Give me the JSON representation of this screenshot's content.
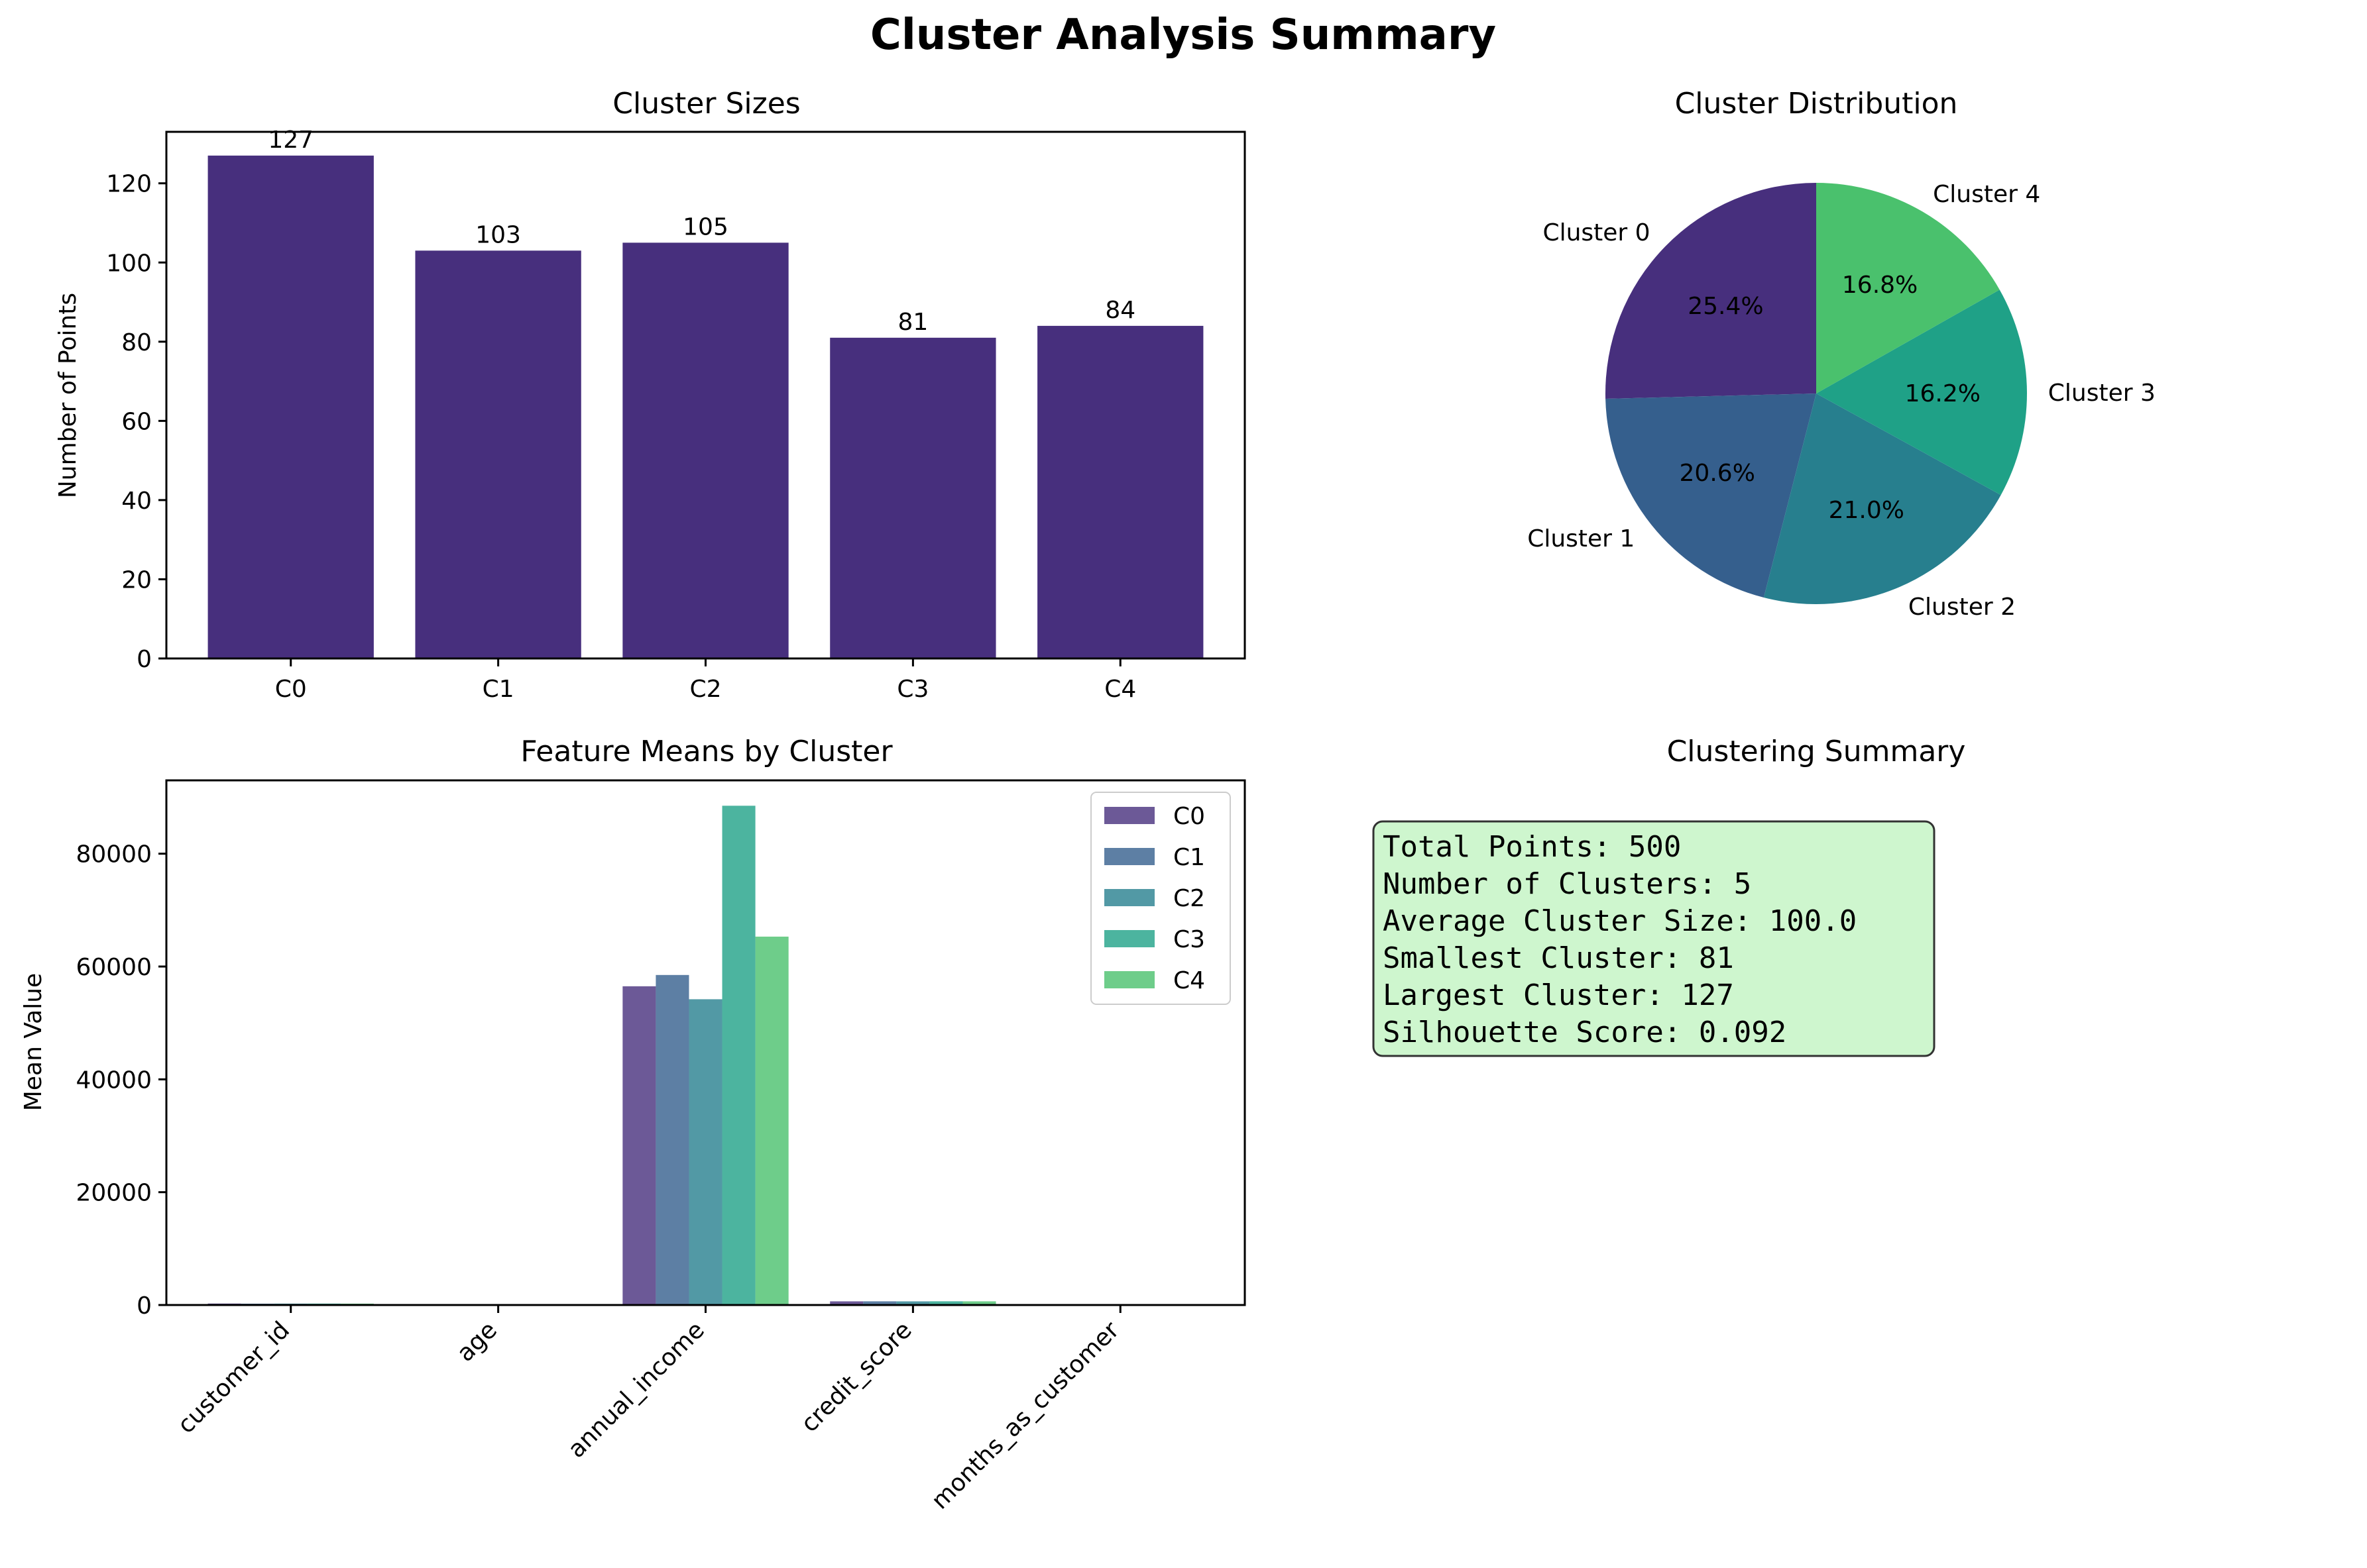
{
  "figure": {
    "title": "Cluster Analysis Summary"
  },
  "chart_data": [
    {
      "id": "sizes",
      "type": "bar",
      "title": "Cluster Sizes",
      "xlabel": "",
      "ylabel": "Number of Points",
      "categories": [
        "C0",
        "C1",
        "C2",
        "C3",
        "C4"
      ],
      "values": [
        127,
        103,
        105,
        81,
        84
      ],
      "data_labels": [
        "127",
        "103",
        "105",
        "81",
        "84"
      ],
      "ylim": [
        0,
        133
      ],
      "yticks": [
        0,
        20,
        40,
        60,
        80,
        100,
        120
      ],
      "color": "#472f7d",
      "grid": false
    },
    {
      "id": "distribution",
      "type": "pie",
      "title": "Cluster Distribution",
      "labels": [
        "Cluster 0",
        "Cluster 1",
        "Cluster 2",
        "Cluster 3",
        "Cluster 4"
      ],
      "values": [
        127,
        103,
        105,
        81,
        84
      ],
      "pct_labels": [
        "25.4%",
        "20.6%",
        "21.0%",
        "16.2%",
        "16.8%"
      ],
      "colors": [
        "#472f7d",
        "#355f8d",
        "#277f8e",
        "#1fa187",
        "#4ac16d"
      ],
      "start_angle": 90
    },
    {
      "id": "means",
      "type": "bar",
      "title": "Feature Means by Cluster",
      "xlabel": "",
      "ylabel": "Mean Value",
      "categories": [
        "customer_id",
        "age",
        "annual_income",
        "credit_score",
        "months_as_customer"
      ],
      "series": [
        {
          "name": "C0",
          "color": "#472f7d",
          "values": [
            260,
            45,
            56500,
            650,
            60
          ]
        },
        {
          "name": "C1",
          "color": "#355f8d",
          "values": [
            240,
            44,
            58500,
            655,
            58
          ]
        },
        {
          "name": "C2",
          "color": "#277f8e",
          "values": [
            250,
            46,
            54200,
            648,
            61
          ]
        },
        {
          "name": "C3",
          "color": "#1fa187",
          "values": [
            255,
            43,
            88500,
            660,
            59
          ]
        },
        {
          "name": "C4",
          "color": "#4ac16d",
          "values": [
            245,
            45,
            65300,
            652,
            62
          ]
        }
      ],
      "ylim": [
        0,
        93000
      ],
      "yticks": [
        0,
        20000,
        40000,
        60000,
        80000
      ],
      "bar_alpha": 0.8,
      "legend": "top-right",
      "grid": false
    }
  ],
  "summary": {
    "title": "Clustering Summary",
    "lines": [
      "Total Points: 500",
      "Number of Clusters: 5",
      "Average Cluster Size: 100.0",
      "Smallest Cluster: 81",
      "Largest Cluster: 127",
      "Silhouette Score: 0.092"
    ],
    "box_color": "#c5f5c5"
  }
}
